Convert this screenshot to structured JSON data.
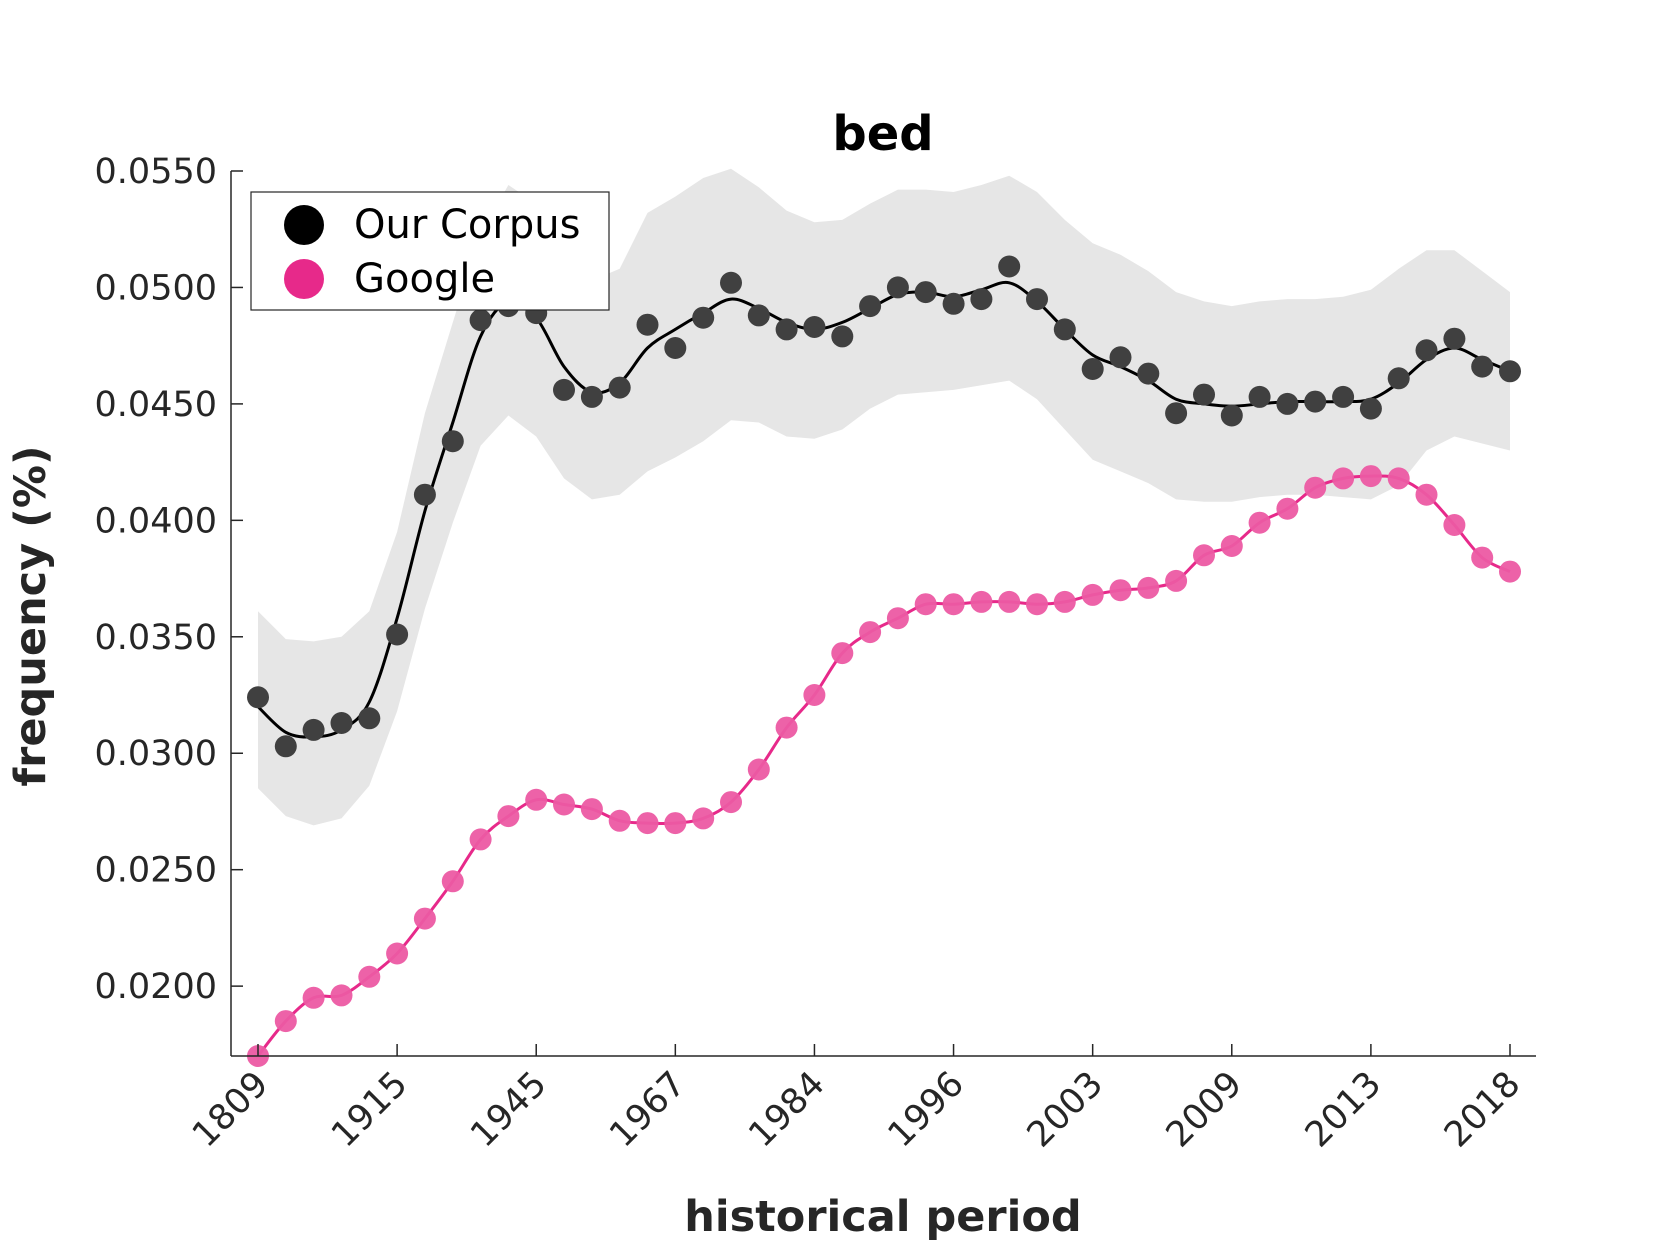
{
  "chart_data": {
    "type": "line",
    "title": "bed",
    "xlabel": "historical period",
    "ylabel": "frequency (%)",
    "ylim": [
      0.017,
      0.055
    ],
    "yticks": [
      "0.0200",
      "0.0250",
      "0.0300",
      "0.0350",
      "0.0400",
      "0.0450",
      "0.0500",
      "0.0550"
    ],
    "yticks_values": [
      0.02,
      0.025,
      0.03,
      0.035,
      0.04,
      0.045,
      0.05,
      0.055
    ],
    "xticks": [
      "1809",
      "1915",
      "1945",
      "1967",
      "1984",
      "1996",
      "2003",
      "2009",
      "2013",
      "2018"
    ],
    "xticks_index": [
      0,
      5,
      10,
      15,
      20,
      25,
      30,
      35,
      40,
      45
    ],
    "grid": false,
    "legend": "top-left",
    "series": [
      {
        "name": "Our Corpus",
        "color": "#000000",
        "marker_color": "#404040",
        "points": [
          0.0324,
          0.0303,
          0.031,
          0.0313,
          0.0315,
          0.0351,
          0.0411,
          0.0434,
          0.0486,
          0.0492,
          0.0489,
          0.0456,
          0.0453,
          0.0457,
          0.0484,
          0.0474,
          0.0487,
          0.0502,
          0.0488,
          0.0482,
          0.0483,
          0.0479,
          0.0492,
          0.05,
          0.0498,
          0.0493,
          0.0495,
          0.0509,
          0.0495,
          0.0482,
          0.0465,
          0.047,
          0.0463,
          0.0446,
          0.0454,
          0.0445,
          0.0453,
          0.045,
          0.0451,
          0.0453,
          0.0448,
          0.0461,
          0.0473,
          0.0478,
          0.0466,
          0.0464
        ],
        "smooth": [
          0.032,
          0.0309,
          0.0307,
          0.031,
          0.0322,
          0.0358,
          0.0404,
          0.0442,
          0.0479,
          0.0494,
          0.0487,
          0.0466,
          0.0455,
          0.0459,
          0.0474,
          0.0482,
          0.0489,
          0.0495,
          0.0491,
          0.0485,
          0.0482,
          0.0485,
          0.0491,
          0.0497,
          0.0498,
          0.0496,
          0.0499,
          0.0502,
          0.0494,
          0.0482,
          0.0471,
          0.0466,
          0.046,
          0.0452,
          0.045,
          0.0449,
          0.045,
          0.0451,
          0.0451,
          0.0451,
          0.0452,
          0.0459,
          0.0469,
          0.0474,
          0.0469,
          0.0464
        ],
        "band_upper": [
          0.0361,
          0.0349,
          0.0348,
          0.035,
          0.0361,
          0.0395,
          0.0446,
          0.0485,
          0.0523,
          0.0544,
          0.0536,
          0.0515,
          0.0503,
          0.0508,
          0.0532,
          0.0539,
          0.0547,
          0.0551,
          0.0543,
          0.0533,
          0.0528,
          0.0529,
          0.0536,
          0.0542,
          0.0542,
          0.0541,
          0.0544,
          0.0548,
          0.0541,
          0.0529,
          0.0519,
          0.0514,
          0.0507,
          0.0498,
          0.0494,
          0.0492,
          0.0494,
          0.0495,
          0.0495,
          0.0496,
          0.0499,
          0.0508,
          0.0516,
          0.0516,
          0.0507,
          0.0498
        ],
        "band_lower": [
          0.0285,
          0.0273,
          0.0269,
          0.0272,
          0.0286,
          0.0318,
          0.0362,
          0.0399,
          0.0432,
          0.0445,
          0.0436,
          0.0418,
          0.0409,
          0.0411,
          0.0421,
          0.0427,
          0.0434,
          0.0443,
          0.0442,
          0.0436,
          0.0435,
          0.0439,
          0.0448,
          0.0454,
          0.0455,
          0.0456,
          0.0458,
          0.046,
          0.0452,
          0.0439,
          0.0426,
          0.0421,
          0.0416,
          0.0409,
          0.0408,
          0.0408,
          0.041,
          0.0411,
          0.0411,
          0.041,
          0.0409,
          0.0415,
          0.043,
          0.0436,
          0.0433,
          0.043
        ]
      },
      {
        "name": "Google",
        "color": "#e7298a",
        "marker_color": "#ec5aa3",
        "points": [
          0.017,
          0.0185,
          0.0195,
          0.0196,
          0.0204,
          0.0214,
          0.0229,
          0.0245,
          0.0263,
          0.0273,
          0.028,
          0.0278,
          0.0276,
          0.0271,
          0.027,
          0.027,
          0.0272,
          0.0279,
          0.0293,
          0.0311,
          0.0325,
          0.0343,
          0.0352,
          0.0358,
          0.0364,
          0.0364,
          0.0365,
          0.0365,
          0.0364,
          0.0365,
          0.0368,
          0.037,
          0.0371,
          0.0374,
          0.0385,
          0.0389,
          0.0399,
          0.0405,
          0.0414,
          0.0418,
          0.0419,
          0.0418,
          0.0411,
          0.0398,
          0.0384,
          0.0378
        ]
      }
    ]
  }
}
